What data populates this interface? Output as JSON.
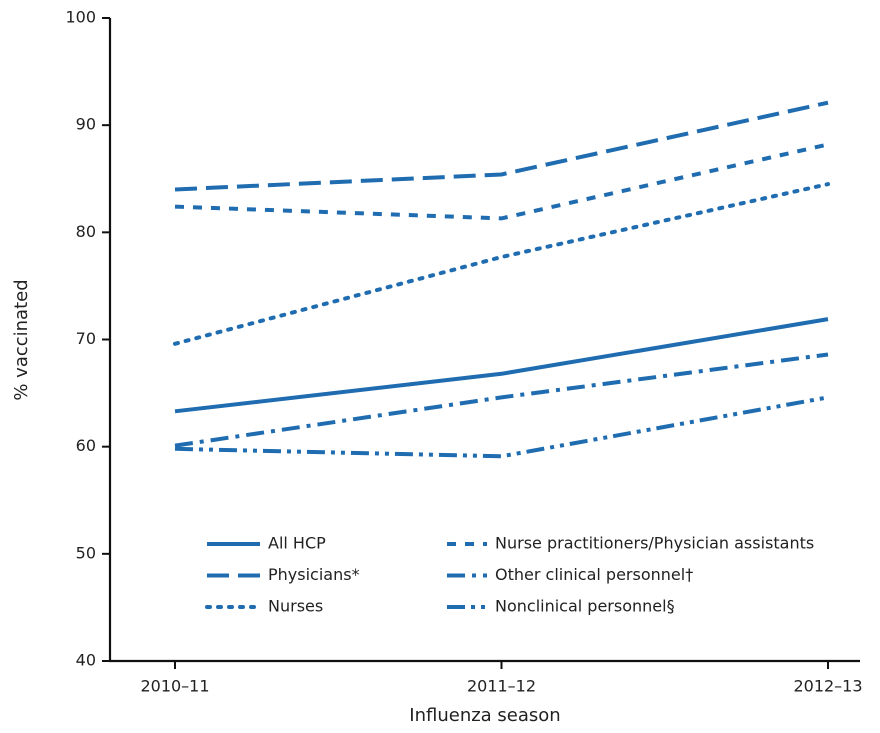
{
  "chart_data": {
    "type": "line",
    "x_label": "Influenza season",
    "y_label": "% vaccinated",
    "categories": [
      "2010–11",
      "2011–12",
      "2012–13"
    ],
    "series": [
      {
        "name": "All HCP",
        "color": "#1f6cb0",
        "style": "solid",
        "values": [
          63.3,
          66.8,
          71.9
        ]
      },
      {
        "name": "Physicians*",
        "color": "#1f6cb0",
        "style": "long-dash",
        "values": [
          84.0,
          85.4,
          92.1
        ]
      },
      {
        "name": "Nurses",
        "color": "#1f6cb0",
        "style": "dot",
        "values": [
          69.6,
          77.7,
          84.5
        ]
      },
      {
        "name": "Nurse practitioners/Physician assistants",
        "color": "#1f6cb0",
        "style": "short-dash",
        "values": [
          82.4,
          81.3,
          88.2
        ]
      },
      {
        "name": "Other clinical personnel†",
        "color": "#1f6cb0",
        "style": "dash-dot",
        "values": [
          60.1,
          64.6,
          68.6
        ]
      },
      {
        "name": "Nonclinical personnel§",
        "color": "#1f6cb0",
        "style": "dash-dot-dot",
        "values": [
          59.8,
          59.1,
          64.6
        ]
      }
    ],
    "ylim": [
      40,
      100
    ],
    "yticks": [
      40,
      50,
      60,
      70,
      80,
      90,
      100
    ],
    "legend": "bottom"
  }
}
